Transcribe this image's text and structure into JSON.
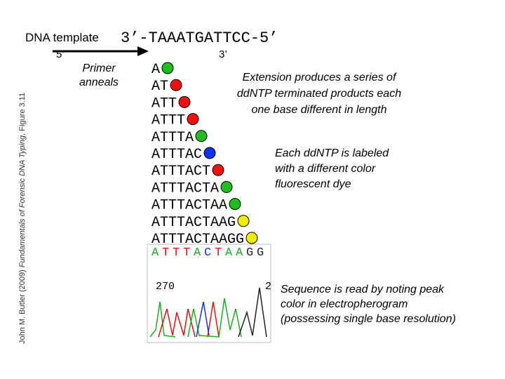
{
  "credit": {
    "author": "John M. Butler (2009) ",
    "book": "Fundamentals of Forensic DNA Typing",
    "figure": ", Figure 3.11"
  },
  "template": {
    "label": "DNA template",
    "sequence": "3’-TAAATGATTCC-5’",
    "primer_5": "5’",
    "primer_3": "3’"
  },
  "primer_note": [
    "Primer",
    "anneals"
  ],
  "products": [
    {
      "text": "A",
      "dot_color": "#22bb22"
    },
    {
      "text": "AT",
      "dot_color": "#ee1111"
    },
    {
      "text": "ATT",
      "dot_color": "#ee1111"
    },
    {
      "text": "ATTT",
      "dot_color": "#ee1111"
    },
    {
      "text": "ATTTA",
      "dot_color": "#22bb22"
    },
    {
      "text": "ATTTAC",
      "dot_color": "#1133ee"
    },
    {
      "text": "ATTTACT",
      "dot_color": "#ee1111"
    },
    {
      "text": "ATTTACTA",
      "dot_color": "#22bb22"
    },
    {
      "text": "ATTTACTAA",
      "dot_color": "#22bb22"
    },
    {
      "text": "ATTTACTAAG",
      "dot_color": "#eeee00"
    },
    {
      "text": "ATTTACTAAGG",
      "dot_color": "#eeee00"
    }
  ],
  "extension_note": [
    "Extension produces a series of",
    "ddNTP terminated products each",
    "one base different in length"
  ],
  "label_note": [
    "Each ddNTP is labeled",
    "with a different color",
    "fluorescent dye"
  ],
  "electropherogram": {
    "bases": [
      {
        "base": "A",
        "color": "#22aa22"
      },
      {
        "base": "T",
        "color": "#dd1111"
      },
      {
        "base": "T",
        "color": "#dd1111"
      },
      {
        "base": "T",
        "color": "#dd1111"
      },
      {
        "base": "A",
        "color": "#22aa22"
      },
      {
        "base": "C",
        "color": "#1133dd"
      },
      {
        "base": "T",
        "color": "#dd1111"
      },
      {
        "base": "A",
        "color": "#22aa22"
      },
      {
        "base": "A",
        "color": "#22aa22"
      },
      {
        "base": "G",
        "color": "#222222"
      },
      {
        "base": "G",
        "color": "#222222"
      }
    ],
    "left_number": "270",
    "right_number": "2"
  },
  "read_note": [
    "Sequence is read by noting peak",
    "color in electropherogram",
    "(possessing single base resolution)"
  ]
}
